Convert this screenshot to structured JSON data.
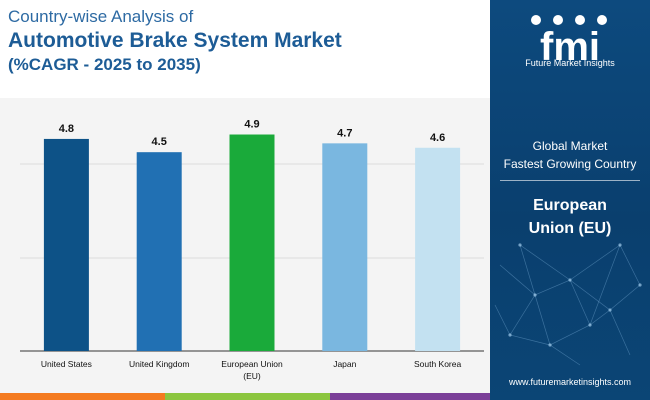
{
  "header": {
    "line1": "Country-wise Analysis of",
    "line2": "Automotive Brake System Market",
    "line3": "(%CAGR - 2025 to 2035)"
  },
  "side_panel": {
    "brand_letters": "fmi",
    "brand_name": "Future Market Insights",
    "subtitle_line1": "Global Market",
    "subtitle_line2": "Fastest Growing Country",
    "country_line1": "European",
    "country_line2": "Union (EU)",
    "url": "www.futuremarketinsights.com"
  },
  "colors": {
    "bottom_bar": [
      "#f47b20",
      "#8cc63f",
      "#7b3f98",
      "#2e86c1"
    ]
  },
  "chart_data": {
    "type": "bar",
    "categories": [
      [
        "United States"
      ],
      [
        "United Kingdom"
      ],
      [
        "European Union",
        "(EU)"
      ],
      [
        "Japan"
      ],
      [
        "South Korea"
      ]
    ],
    "values": [
      4.8,
      4.5,
      4.9,
      4.7,
      4.6
    ],
    "colors": [
      "#0d5287",
      "#2170b3",
      "#1aaa3a",
      "#7ab7e0",
      "#c3e1f1"
    ],
    "ylim": [
      0,
      5.5
    ],
    "grid": true,
    "value_labels": true
  }
}
